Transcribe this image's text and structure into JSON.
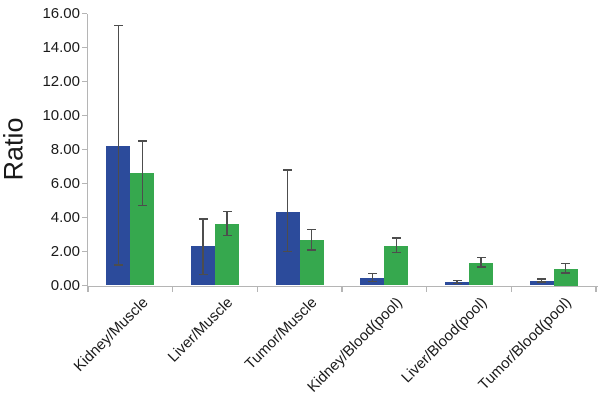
{
  "chart_data": {
    "type": "bar",
    "ylabel": "Ratio",
    "ylim": [
      0,
      16
    ],
    "ytick_interval": 2,
    "ytick_values": [
      0,
      2,
      4,
      6,
      8,
      10,
      12,
      14,
      16
    ],
    "yticks": [
      "0.00",
      "2.00",
      "4.00",
      "6.00",
      "8.00",
      "10.00",
      "12.00",
      "14.00",
      "16.00"
    ],
    "categories": [
      "Kidney/Muscle",
      "Liver/Muscle",
      "Tumor/Muscle",
      "Kidney/Blood(pool)",
      "Liver/Blood(pool)",
      "Tumor/Blood(pool)"
    ],
    "series": [
      {
        "name": "series-blue",
        "color": "#2C4B9B",
        "values": [
          8.2,
          2.3,
          4.35,
          0.45,
          0.2,
          0.28
        ],
        "error_low": [
          1.2,
          0.65,
          2.0,
          0.25,
          0.12,
          0.2
        ],
        "error_high": [
          15.3,
          3.9,
          6.8,
          0.7,
          0.28,
          0.38
        ]
      },
      {
        "name": "series-green",
        "color": "#36A84E",
        "values": [
          6.6,
          3.6,
          2.65,
          2.35,
          1.3,
          1.0
        ],
        "error_low": [
          4.7,
          2.95,
          2.1,
          1.95,
          1.08,
          0.75
        ],
        "error_high": [
          8.5,
          4.35,
          3.3,
          2.8,
          1.65,
          1.28
        ]
      }
    ],
    "legend": "none",
    "grid": false,
    "colors": {
      "axis": "#b5b5b5",
      "error_bar": "#4d4d4d",
      "text": "#1a1a1a",
      "background": "#ffffff"
    }
  }
}
